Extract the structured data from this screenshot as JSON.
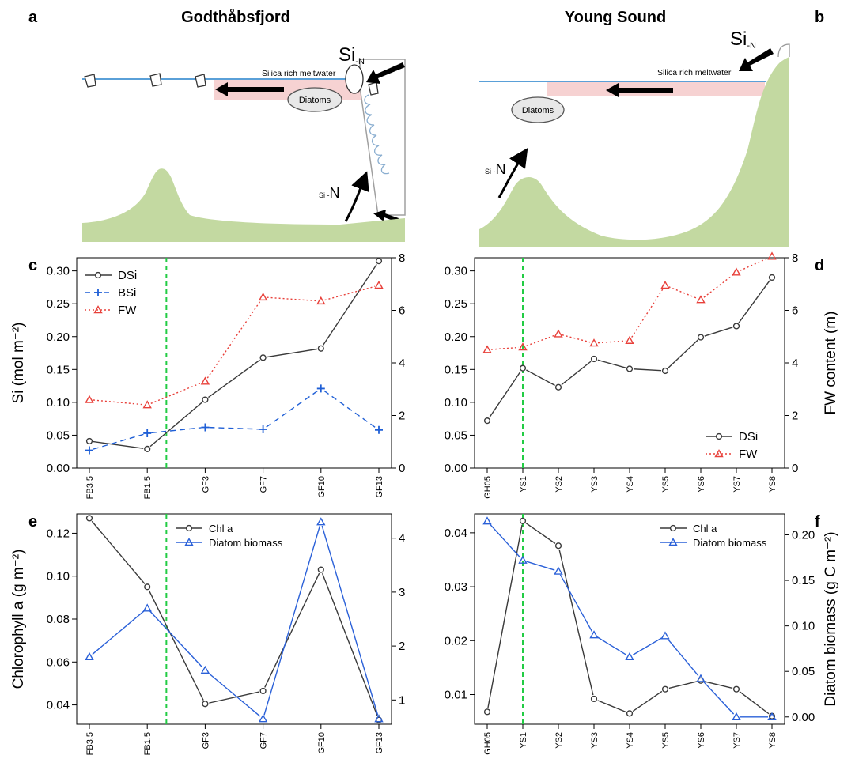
{
  "figure": {
    "panel_letters": {
      "a": "a",
      "b": "b",
      "c": "c",
      "d": "d",
      "e": "e",
      "f": "f"
    },
    "panel_a": {
      "title": "Godthåbsfjord",
      "si_n_label": "Si",
      "si_n_subscript": "-N",
      "meltwater_label": "Silica rich meltwater",
      "diatoms_label": "Diatoms",
      "upwelling_label": "N",
      "upwelling_prefix": "Si -"
    },
    "panel_b": {
      "title": "Young Sound",
      "si_n_label": "Si",
      "si_n_subscript": "-N",
      "meltwater_label": "Silica rich meltwater",
      "diatoms_label": "Diatoms",
      "upwelling_label": "N",
      "upwelling_prefix": "Si -"
    },
    "colors": {
      "sea_line": "#5aa0d8",
      "meltwater_band": "#f6d2d2",
      "terrain": "#c3d9a1",
      "dsi": "#3a3a3a",
      "bsi": "#1f5fd6",
      "fw": "#e8403a",
      "chl": "#3a3a3a",
      "diatom": "#2a60d8",
      "boundary": "#22cc44"
    },
    "icons": [
      "iceberg-icon",
      "large-arrow-icon"
    ]
  },
  "chart_data": [
    {
      "panel": "c",
      "type": "line",
      "categories": [
        "FB3.5",
        "FB1.5",
        "GF3",
        "GF7",
        "GF10",
        "GF13"
      ],
      "ylabel": "Si (mol m⁻²)",
      "ylim": [
        0,
        0.32
      ],
      "yticks": [
        "0.00",
        "0.05",
        "0.10",
        "0.15",
        "0.20",
        "0.25",
        "0.30"
      ],
      "y2lim": [
        0,
        8
      ],
      "y2ticks": [
        "0",
        "2",
        "4",
        "6",
        "8"
      ],
      "boundary_after_index": 1,
      "legend_position": "top-left",
      "series": [
        {
          "name": "DSi",
          "axis": "left",
          "style": "solid-circle",
          "values": [
            0.041,
            0.029,
            0.104,
            0.168,
            0.182,
            0.315
          ]
        },
        {
          "name": "BSi",
          "axis": "left",
          "style": "dashed-plus",
          "values": [
            0.027,
            0.053,
            0.062,
            0.059,
            0.121,
            0.058
          ]
        },
        {
          "name": "FW",
          "axis": "right",
          "style": "dotted-triangle",
          "values": [
            2.6,
            2.4,
            3.3,
            6.5,
            6.35,
            6.95
          ]
        }
      ]
    },
    {
      "panel": "d",
      "type": "line",
      "categories": [
        "GH05",
        "YS1",
        "YS2",
        "YS3",
        "YS4",
        "YS5",
        "YS6",
        "YS7",
        "YS8"
      ],
      "ylabel": "",
      "ylim": [
        0,
        0.32
      ],
      "yticks": [
        "0.00",
        "0.05",
        "0.10",
        "0.15",
        "0.20",
        "0.25",
        "0.30"
      ],
      "y2label": "FW content (m)",
      "y2lim": [
        0,
        8
      ],
      "y2ticks": [
        "0",
        "2",
        "4",
        "6",
        "8"
      ],
      "boundary_after_index": 1,
      "legend_position": "bottom-right",
      "series": [
        {
          "name": "DSi",
          "axis": "left",
          "style": "solid-circle",
          "values": [
            0.072,
            0.152,
            0.123,
            0.166,
            0.151,
            0.148,
            0.199,
            0.216,
            0.29
          ]
        },
        {
          "name": "FW",
          "axis": "right",
          "style": "dotted-triangle",
          "values": [
            4.5,
            4.6,
            5.1,
            4.75,
            4.85,
            6.95,
            6.4,
            7.45,
            8.05
          ]
        }
      ]
    },
    {
      "panel": "e",
      "type": "line",
      "categories": [
        "FB3.5",
        "FB1.5",
        "GF3",
        "GF7",
        "GF10",
        "GF13"
      ],
      "ylabel": "Chlorophyll a (g m⁻²)",
      "ylim": [
        0.031,
        0.129
      ],
      "yticks": [
        "0.04",
        "0.06",
        "0.08",
        "0.10",
        "0.12"
      ],
      "y2lim": [
        0.55,
        4.45
      ],
      "y2ticks": [
        "1",
        "2",
        "3",
        "4"
      ],
      "boundary_after_index": 1,
      "legend_position": "top-center",
      "series": [
        {
          "name": "Chl a",
          "axis": "left",
          "style": "solid-circle",
          "values": [
            0.127,
            0.095,
            0.0405,
            0.0465,
            0.103,
            0.033
          ]
        },
        {
          "name": "Diatom biomass",
          "axis": "right",
          "style": "solid-triangle",
          "values": [
            1.8,
            2.7,
            1.55,
            0.65,
            4.3,
            0.65
          ]
        }
      ]
    },
    {
      "panel": "f",
      "type": "line",
      "categories": [
        "GH05",
        "YS1",
        "YS2",
        "YS3",
        "YS4",
        "YS5",
        "YS6",
        "YS7",
        "YS8"
      ],
      "ylabel": "",
      "ylim": [
        0.0045,
        0.0435
      ],
      "yticks": [
        "0.01",
        "0.02",
        "0.03",
        "0.04"
      ],
      "y2label": "Diatom biomass (g C m⁻²)",
      "y2lim": [
        -0.008,
        0.223
      ],
      "y2ticks": [
        "0.00",
        "0.05",
        "0.10",
        "0.15",
        "0.20"
      ],
      "boundary_after_index": 1,
      "legend_position": "top-right",
      "series": [
        {
          "name": "Chl a",
          "axis": "left",
          "style": "solid-circle",
          "values": [
            0.0068,
            0.0422,
            0.0376,
            0.0092,
            0.0065,
            0.011,
            0.0126,
            0.011,
            0.006
          ]
        },
        {
          "name": "Diatom biomass",
          "axis": "right",
          "style": "solid-triangle",
          "values": [
            0.215,
            0.172,
            0.16,
            0.09,
            0.066,
            0.089,
            0.042,
            0.0,
            0.0
          ]
        }
      ]
    }
  ]
}
